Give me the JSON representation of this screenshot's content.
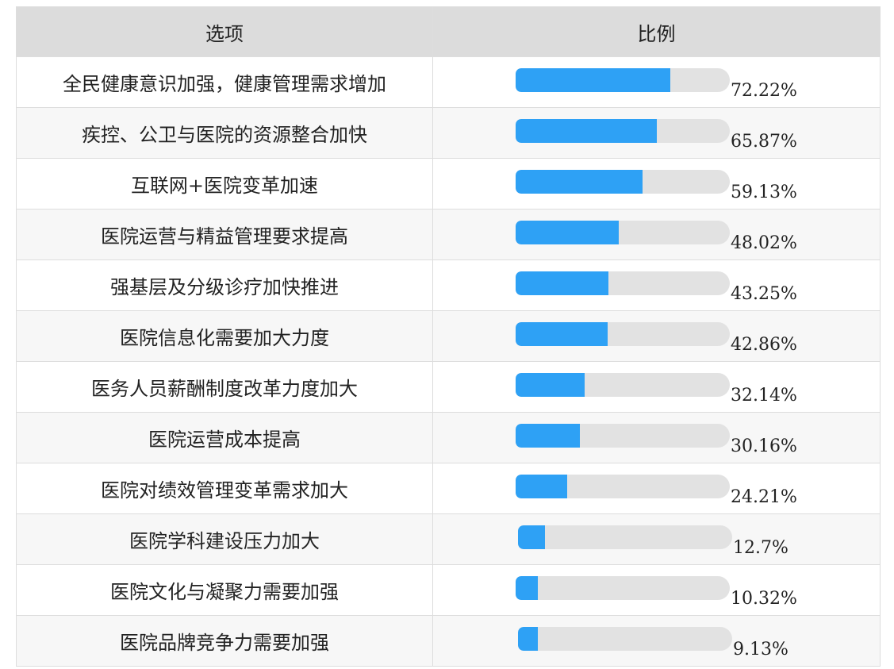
{
  "table": {
    "headers": {
      "option": "选项",
      "ratio": "比例"
    }
  },
  "colors": {
    "bar_fill": "#2ea1f5",
    "bar_track": "#e2e2e2",
    "header_bg": "#dcdcdc"
  },
  "chart_data": {
    "type": "bar",
    "orientation": "horizontal",
    "xlim": [
      0,
      100
    ],
    "value_unit": "%",
    "categories": [
      "全民健康意识加强，健康管理需求增加",
      "疾控、公卫与医院的资源整合加快",
      "互联网+医院变革加速",
      "医院运营与精益管理要求提高",
      "强基层及分级诊疗加快推进",
      "医院信息化需要加大力度",
      "医务人员薪酬制度改革力度加大",
      "医院运营成本提高",
      "医院对绩效管理变革需求加大",
      "医院学科建设压力加大",
      "医院文化与凝聚力需要加强",
      "医院品牌竞争力需要加强"
    ],
    "values": [
      72.22,
      65.87,
      59.13,
      48.02,
      43.25,
      42.86,
      32.14,
      30.16,
      24.21,
      12.7,
      10.32,
      9.13
    ],
    "value_labels": [
      "72.22%",
      "65.87%",
      "59.13%",
      "48.02%",
      "43.25%",
      "42.86%",
      "32.14%",
      "30.16%",
      "24.21%",
      "12.7%",
      "10.32%",
      "9.13%"
    ]
  }
}
